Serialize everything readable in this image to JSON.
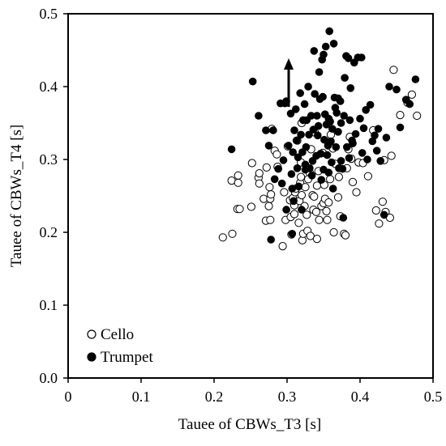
{
  "chart_data": {
    "type": "scatter",
    "xlabel": "Tauee of CBWs_T3 [s]",
    "ylabel": "Tauee of CBWs_T4 [s]",
    "xlim": [
      0,
      0.5
    ],
    "ylim": [
      0,
      0.5
    ],
    "x_ticks": [
      "0",
      "0.1",
      "0.2",
      "0.3",
      "0.4",
      "0.5"
    ],
    "y_ticks": [
      "0.0",
      "0.1",
      "0.2",
      "0.3",
      "0.4",
      "0.5"
    ],
    "grid": false,
    "legend_position": "bottom-left",
    "annotation": "upward-arrow",
    "colors": {
      "cello_fill": "#ffffff",
      "trumpet_fill": "#000000",
      "stroke": "#000000"
    },
    "series": [
      {
        "name": "Cello",
        "marker": "open-circle",
        "points": [
          [
            0.212,
            0.193
          ],
          [
            0.225,
            0.198
          ],
          [
            0.224,
            0.271
          ],
          [
            0.232,
            0.232
          ],
          [
            0.235,
            0.232
          ],
          [
            0.233,
            0.268
          ],
          [
            0.233,
            0.278
          ],
          [
            0.251,
            0.235
          ],
          [
            0.252,
            0.295
          ],
          [
            0.261,
            0.275
          ],
          [
            0.262,
            0.267
          ],
          [
            0.262,
            0.281
          ],
          [
            0.268,
            0.246
          ],
          [
            0.271,
            0.216
          ],
          [
            0.272,
            0.289
          ],
          [
            0.275,
            0.236
          ],
          [
            0.276,
            0.262
          ],
          [
            0.277,
            0.246
          ],
          [
            0.277,
            0.217
          ],
          [
            0.278,
            0.252
          ],
          [
            0.279,
            0.342
          ],
          [
            0.283,
            0.312
          ],
          [
            0.286,
            0.307
          ],
          [
            0.287,
            0.29
          ],
          [
            0.294,
            0.181
          ],
          [
            0.296,
            0.255
          ],
          [
            0.298,
            0.217
          ],
          [
            0.301,
            0.318
          ],
          [
            0.304,
            0.244
          ],
          [
            0.305,
            0.221
          ],
          [
            0.306,
            0.197
          ],
          [
            0.308,
            0.247
          ],
          [
            0.31,
            0.225
          ],
          [
            0.31,
            0.237
          ],
          [
            0.311,
            0.255
          ],
          [
            0.312,
            0.26
          ],
          [
            0.314,
            0.326
          ],
          [
            0.316,
            0.213
          ],
          [
            0.317,
            0.243
          ],
          [
            0.318,
            0.268
          ],
          [
            0.319,
            0.276
          ],
          [
            0.319,
            0.296
          ],
          [
            0.32,
            0.251
          ],
          [
            0.321,
            0.189
          ],
          [
            0.322,
            0.198
          ],
          [
            0.324,
            0.236
          ],
          [
            0.325,
            0.262
          ],
          [
            0.327,
            0.224
          ],
          [
            0.328,
            0.202
          ],
          [
            0.329,
            0.273
          ],
          [
            0.331,
            0.282
          ],
          [
            0.332,
            0.195
          ],
          [
            0.333,
            0.314
          ],
          [
            0.335,
            0.251
          ],
          [
            0.336,
            0.231
          ],
          [
            0.337,
            0.249
          ],
          [
            0.338,
            0.337
          ],
          [
            0.34,
            0.228
          ],
          [
            0.341,
            0.191
          ],
          [
            0.341,
            0.264
          ],
          [
            0.343,
            0.284
          ],
          [
            0.344,
            0.217
          ],
          [
            0.347,
            0.236
          ],
          [
            0.349,
            0.309
          ],
          [
            0.35,
            0.24
          ],
          [
            0.351,
            0.265
          ],
          [
            0.352,
            0.246
          ],
          [
            0.354,
            0.229
          ],
          [
            0.355,
            0.217
          ],
          [
            0.357,
            0.241
          ],
          [
            0.359,
            0.273
          ],
          [
            0.36,
            0.334
          ],
          [
            0.363,
            0.315
          ],
          [
            0.364,
            0.2
          ],
          [
            0.366,
            0.294
          ],
          [
            0.37,
            0.248
          ],
          [
            0.371,
            0.276
          ],
          [
            0.373,
            0.222
          ],
          [
            0.378,
            0.198
          ],
          [
            0.38,
            0.196
          ],
          [
            0.382,
            0.288
          ],
          [
            0.384,
            0.314
          ],
          [
            0.386,
            0.331
          ],
          [
            0.388,
            0.301
          ],
          [
            0.39,
            0.269
          ],
          [
            0.395,
            0.255
          ],
          [
            0.398,
            0.296
          ],
          [
            0.404,
            0.295
          ],
          [
            0.411,
            0.277
          ],
          [
            0.418,
            0.34
          ],
          [
            0.422,
            0.23
          ],
          [
            0.426,
            0.212
          ],
          [
            0.431,
            0.242
          ],
          [
            0.433,
            0.299
          ],
          [
            0.435,
            0.228
          ],
          [
            0.441,
            0.22
          ],
          [
            0.443,
            0.305
          ],
          [
            0.446,
            0.423
          ],
          [
            0.455,
            0.361
          ],
          [
            0.465,
            0.378
          ],
          [
            0.471,
            0.389
          ],
          [
            0.478,
            0.36
          ],
          [
            0.32,
            0.35
          ]
        ]
      },
      {
        "name": "Trumpet",
        "marker": "filled-circle",
        "points": [
          [
            0.224,
            0.314
          ],
          [
            0.253,
            0.407
          ],
          [
            0.261,
            0.36
          ],
          [
            0.271,
            0.34
          ],
          [
            0.275,
            0.319
          ],
          [
            0.278,
            0.19
          ],
          [
            0.281,
            0.34
          ],
          [
            0.283,
            0.273
          ],
          [
            0.288,
            0.287
          ],
          [
            0.291,
            0.377
          ],
          [
            0.293,
            0.267
          ],
          [
            0.295,
            0.299
          ],
          [
            0.297,
            0.377
          ],
          [
            0.299,
            0.38
          ],
          [
            0.299,
            0.231
          ],
          [
            0.302,
            0.319
          ],
          [
            0.305,
            0.363
          ],
          [
            0.306,
            0.28
          ],
          [
            0.307,
            0.198
          ],
          [
            0.307,
            0.26
          ],
          [
            0.308,
            0.31
          ],
          [
            0.309,
            0.243
          ],
          [
            0.31,
            0.34
          ],
          [
            0.312,
            0.369
          ],
          [
            0.313,
            0.326
          ],
          [
            0.314,
            0.288
          ],
          [
            0.315,
            0.303
          ],
          [
            0.316,
            0.263
          ],
          [
            0.318,
            0.391
          ],
          [
            0.319,
            0.334
          ],
          [
            0.32,
            0.231
          ],
          [
            0.321,
            0.31
          ],
          [
            0.322,
            0.354
          ],
          [
            0.324,
            0.376
          ],
          [
            0.325,
            0.286
          ],
          [
            0.325,
            0.293
          ],
          [
            0.326,
            0.317
          ],
          [
            0.327,
            0.354
          ],
          [
            0.329,
            0.4
          ],
          [
            0.33,
            0.334
          ],
          [
            0.331,
            0.288
          ],
          [
            0.333,
            0.36
          ],
          [
            0.334,
            0.278
          ],
          [
            0.335,
            0.298
          ],
          [
            0.336,
            0.341
          ],
          [
            0.337,
            0.449
          ],
          [
            0.338,
            0.39
          ],
          [
            0.34,
            0.305
          ],
          [
            0.341,
            0.36
          ],
          [
            0.342,
            0.333
          ],
          [
            0.343,
            0.346
          ],
          [
            0.344,
            0.42
          ],
          [
            0.345,
            0.383
          ],
          [
            0.346,
            0.308
          ],
          [
            0.347,
            0.272
          ],
          [
            0.348,
            0.437
          ],
          [
            0.349,
            0.386
          ],
          [
            0.35,
            0.444
          ],
          [
            0.351,
            0.327
          ],
          [
            0.352,
            0.362
          ],
          [
            0.353,
            0.455
          ],
          [
            0.354,
            0.348
          ],
          [
            0.355,
            0.306
          ],
          [
            0.356,
            0.319
          ],
          [
            0.357,
            0.282
          ],
          [
            0.357,
            0.356
          ],
          [
            0.358,
            0.476
          ],
          [
            0.359,
            0.352
          ],
          [
            0.36,
            0.325
          ],
          [
            0.361,
            0.296
          ],
          [
            0.362,
            0.342
          ],
          [
            0.363,
            0.26
          ],
          [
            0.364,
            0.459
          ],
          [
            0.365,
            0.385
          ],
          [
            0.366,
            0.371
          ],
          [
            0.367,
            0.317
          ],
          [
            0.368,
            0.364
          ],
          [
            0.37,
            0.384
          ],
          [
            0.37,
            0.338
          ],
          [
            0.371,
            0.288
          ],
          [
            0.373,
            0.38
          ],
          [
            0.374,
            0.298
          ],
          [
            0.374,
            0.35
          ],
          [
            0.376,
            0.287
          ],
          [
            0.377,
            0.22
          ],
          [
            0.378,
            0.36
          ],
          [
            0.379,
            0.412
          ],
          [
            0.381,
            0.442
          ],
          [
            0.382,
            0.317
          ],
          [
            0.384,
            0.439
          ],
          [
            0.385,
            0.302
          ],
          [
            0.386,
            0.354
          ],
          [
            0.387,
            0.398
          ],
          [
            0.389,
            0.326
          ],
          [
            0.39,
            0.322
          ],
          [
            0.392,
            0.433
          ],
          [
            0.394,
            0.335
          ],
          [
            0.397,
            0.44
          ],
          [
            0.4,
            0.356
          ],
          [
            0.402,
            0.44
          ],
          [
            0.403,
            0.309
          ],
          [
            0.405,
            0.343
          ],
          [
            0.408,
            0.368
          ],
          [
            0.41,
            0.3
          ],
          [
            0.414,
            0.375
          ],
          [
            0.417,
            0.325
          ],
          [
            0.42,
            0.333
          ],
          [
            0.423,
            0.312
          ],
          [
            0.425,
            0.342
          ],
          [
            0.428,
            0.298
          ],
          [
            0.433,
            0.224
          ],
          [
            0.436,
            0.33
          ],
          [
            0.44,
            0.4
          ],
          [
            0.45,
            0.396
          ],
          [
            0.455,
            0.344
          ],
          [
            0.463,
            0.382
          ],
          [
            0.468,
            0.376
          ],
          [
            0.476,
            0.41
          ],
          [
            0.35,
            0.286
          ]
        ]
      }
    ]
  }
}
